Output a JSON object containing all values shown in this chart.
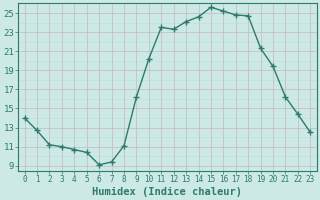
{
  "x": [
    0,
    1,
    2,
    3,
    4,
    5,
    6,
    7,
    8,
    9,
    10,
    11,
    12,
    13,
    14,
    15,
    16,
    17,
    18,
    19,
    20,
    21,
    22,
    23
  ],
  "y": [
    14.0,
    12.7,
    11.2,
    11.0,
    10.7,
    10.4,
    9.1,
    9.4,
    11.1,
    16.2,
    20.2,
    23.5,
    23.3,
    24.1,
    24.6,
    25.6,
    25.2,
    24.8,
    24.7,
    21.3,
    19.4,
    16.2,
    14.4,
    12.5
  ],
  "line_color": "#2d7a6e",
  "marker": "+",
  "marker_size": 4,
  "marker_lw": 1.0,
  "bg_color": "#cce9e5",
  "grid_major_color": "#c4b8c0",
  "grid_minor_color": "#c4e0dc",
  "xlabel": "Humidex (Indice chaleur)",
  "xlim": [
    -0.5,
    23.5
  ],
  "ylim": [
    8.5,
    26.0
  ],
  "yticks": [
    9,
    11,
    13,
    15,
    17,
    19,
    21,
    23,
    25
  ],
  "xticks": [
    0,
    1,
    2,
    3,
    4,
    5,
    6,
    7,
    8,
    9,
    10,
    11,
    12,
    13,
    14,
    15,
    16,
    17,
    18,
    19,
    20,
    21,
    22,
    23
  ],
  "tick_color": "#2d7a6e",
  "xlabel_fontsize": 7.5,
  "tick_fontsize": 6.5,
  "line_width": 1.0
}
